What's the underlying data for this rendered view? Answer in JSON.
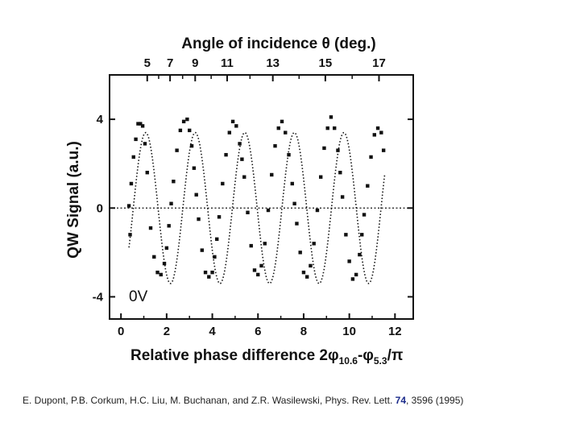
{
  "chart_data": {
    "type": "scatter",
    "title": "",
    "xlabel": "Relative phase difference 2φ",
    "xlabel_sub1": "10.6",
    "xlabel_mid": "-φ",
    "xlabel_sub2": "5.3",
    "xlabel_tail": "/π",
    "ylabel": "QW Signal (a.u.)",
    "top_xlabel": "Angle of incidence θ (deg.)",
    "annotation": "0V",
    "xlim": [
      -0.5,
      12.8
    ],
    "ylim": [
      -5,
      6
    ],
    "x_ticks": [
      0,
      2,
      4,
      6,
      8,
      10,
      12
    ],
    "y_ticks": [
      -4,
      0,
      4
    ],
    "top_ticks": [
      {
        "label": "5",
        "x": 1.15
      },
      {
        "label": "7",
        "x": 2.15
      },
      {
        "label": "9",
        "x": 3.25
      },
      {
        "label": "11",
        "x": 4.65
      },
      {
        "label": "13",
        "x": 6.65
      },
      {
        "label": "15",
        "x": 8.95
      },
      {
        "label": "17",
        "x": 11.3
      }
    ],
    "fit": {
      "amplitude": 3.4,
      "period": 2.17,
      "phase_x0": 0.54,
      "x_start": 0.35,
      "x_end": 11.55
    },
    "reference_line_y": 0,
    "series": [
      {
        "x": [
          0.35,
          0.45,
          0.55,
          0.65,
          0.75,
          0.85,
          0.95,
          1.05,
          1.15,
          1.3,
          1.45,
          1.6,
          1.75,
          1.9,
          2.0,
          2.1,
          2.2,
          2.3,
          2.45,
          2.6,
          2.75,
          2.9,
          3.0,
          3.1,
          3.2,
          3.3,
          3.4,
          3.55,
          3.7,
          3.85,
          4.0,
          4.1,
          4.2,
          4.3,
          4.45,
          4.6,
          4.75,
          4.9,
          5.05,
          5.2,
          5.3,
          5.4,
          5.55,
          5.7,
          5.85,
          6.0,
          6.15,
          6.3,
          6.45,
          6.6,
          6.75,
          6.9,
          7.05,
          7.2,
          7.35,
          7.5,
          7.6,
          7.7,
          7.85,
          8.0,
          8.15,
          8.3,
          8.45,
          8.6,
          8.75,
          8.9,
          9.05,
          9.2,
          9.35,
          9.5,
          9.6,
          9.7,
          9.85,
          10.0,
          10.15,
          10.3,
          10.45,
          10.55,
          10.65,
          10.8,
          10.95,
          11.1,
          11.25,
          11.4,
          11.5,
          0.4
        ],
        "y": [
          0.1,
          1.1,
          2.3,
          3.1,
          3.8,
          3.8,
          3.7,
          2.9,
          1.6,
          -0.9,
          -2.2,
          -2.9,
          -3.0,
          -2.5,
          -1.8,
          -0.8,
          0.2,
          1.2,
          2.6,
          3.5,
          3.9,
          4.0,
          3.5,
          2.8,
          1.8,
          0.6,
          -0.5,
          -1.9,
          -2.9,
          -3.1,
          -2.9,
          -2.2,
          -1.4,
          -0.4,
          1.1,
          2.4,
          3.4,
          3.9,
          3.7,
          2.9,
          2.2,
          1.4,
          -0.2,
          -1.7,
          -2.8,
          -3.0,
          -2.6,
          -1.6,
          -0.1,
          1.5,
          2.8,
          3.6,
          3.9,
          3.4,
          2.4,
          1.1,
          0.2,
          -0.7,
          -2.0,
          -2.9,
          -3.1,
          -2.6,
          -1.6,
          -0.1,
          1.4,
          2.7,
          3.6,
          4.1,
          3.6,
          2.6,
          1.6,
          0.5,
          -1.2,
          -2.4,
          -3.2,
          -3.0,
          -2.1,
          -1.2,
          -0.3,
          1.0,
          2.3,
          3.3,
          3.6,
          3.4,
          2.6,
          -1.2
        ]
      }
    ]
  },
  "citation": {
    "prefix": "E. Dupont, P.B. Corkum, H.C. Liu, M. Buchanan, and Z.R. Wasilewski, Phys. Rev. Lett. ",
    "volume": "74",
    "suffix": ", 3596 (1995)"
  }
}
